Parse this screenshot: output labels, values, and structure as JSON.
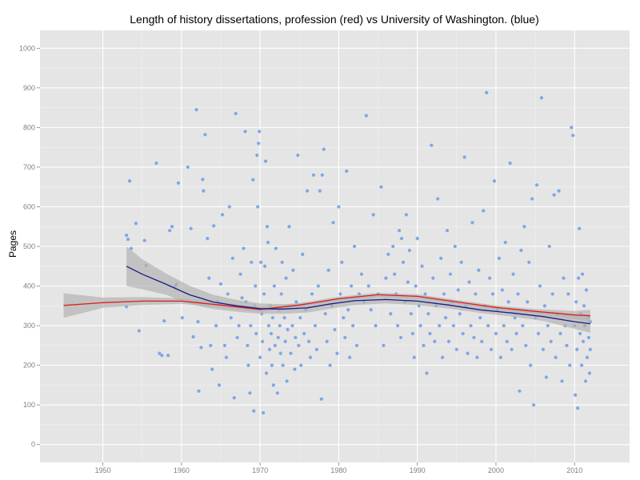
{
  "chart_data": {
    "type": "scatter",
    "title": "Length of history dissertations, profession (red) vs University of Washington. (blue)",
    "xlabel": "",
    "ylabel": "Pages",
    "xlim": [
      1942,
      2017
    ],
    "ylim": [
      -45,
      1045
    ],
    "x_ticks": [
      1950,
      1960,
      1970,
      1980,
      1990,
      2000,
      2010
    ],
    "y_ticks": [
      0,
      100,
      200,
      300,
      400,
      500,
      600,
      700,
      800,
      900,
      1000
    ],
    "grid": true,
    "legend": "none",
    "colors": {
      "panel": "#e5e5e5",
      "grid_major": "#ffffff",
      "grid_minor": "#f2f2f2",
      "points": "#7ea6e6",
      "profession_line": "#e01b1b",
      "uw_line": "#1a1a8c",
      "ribbon": "#b3b3b3"
    },
    "series": [
      {
        "x": [
          1945,
          1950,
          1955,
          1960,
          1965,
          1970,
          1975,
          1980,
          1985,
          1990,
          1995,
          2000,
          2005,
          2010,
          2012
        ],
        "y": [
          351,
          358,
          362,
          362,
          352,
          341,
          352,
          368,
          378,
          374,
          360,
          346,
          336,
          327,
          325
        ],
        "band": [
          [
            320,
            382
          ],
          [
            345,
            371
          ],
          [
            352,
            372
          ],
          [
            355,
            369
          ],
          [
            345,
            359
          ],
          [
            335,
            347
          ],
          [
            347,
            357
          ],
          [
            363,
            373
          ],
          [
            373,
            383
          ],
          [
            369,
            379
          ],
          [
            355,
            365
          ],
          [
            341,
            351
          ],
          [
            330,
            342
          ],
          [
            317,
            337
          ],
          [
            310,
            340
          ]
        ]
      },
      {
        "x": [
          1953,
          1955,
          1958,
          1961,
          1964,
          1967,
          1970,
          1973,
          1976,
          1979,
          1982,
          1986,
          1990,
          1994,
          1998,
          2002,
          2006,
          2010,
          2012
        ],
        "y": [
          450,
          430,
          405,
          378,
          360,
          350,
          343,
          342,
          345,
          355,
          363,
          366,
          362,
          352,
          340,
          332,
          323,
          310,
          305
        ],
        "band": [
          [
            400,
            500
          ],
          [
            392,
            468
          ],
          [
            378,
            432
          ],
          [
            355,
            401
          ],
          [
            342,
            378
          ],
          [
            335,
            365
          ],
          [
            330,
            356
          ],
          [
            330,
            354
          ],
          [
            333,
            357
          ],
          [
            343,
            367
          ],
          [
            352,
            374
          ],
          [
            356,
            376
          ],
          [
            352,
            372
          ],
          [
            343,
            361
          ],
          [
            332,
            348
          ],
          [
            323,
            341
          ],
          [
            312,
            334
          ],
          [
            292,
            328
          ],
          [
            282,
            328
          ]
        ]
      }
    ],
    "points": [
      [
        1953.0,
        528
      ],
      [
        1953.2,
        518
      ],
      [
        1953.4,
        665
      ],
      [
        1953.6,
        495
      ],
      [
        1953.0,
        348
      ],
      [
        1954.2,
        558
      ],
      [
        1954.6,
        287
      ],
      [
        1955.3,
        515
      ],
      [
        1955.5,
        452
      ],
      [
        1956.8,
        710
      ],
      [
        1957.2,
        230
      ],
      [
        1957.5,
        225
      ],
      [
        1957.8,
        312
      ],
      [
        1958.3,
        225
      ],
      [
        1958.5,
        540
      ],
      [
        1958.8,
        550
      ],
      [
        1959.2,
        400
      ],
      [
        1959.4,
        405
      ],
      [
        1959.6,
        660
      ],
      [
        1960.1,
        320
      ],
      [
        1960.8,
        700
      ],
      [
        1961.2,
        545
      ],
      [
        1961.5,
        272
      ],
      [
        1961.9,
        845
      ],
      [
        1962.1,
        310
      ],
      [
        1962.2,
        135
      ],
      [
        1962.5,
        245
      ],
      [
        1962.7,
        669
      ],
      [
        1962.8,
        640
      ],
      [
        1963.0,
        782
      ],
      [
        1963.3,
        520
      ],
      [
        1963.5,
        420
      ],
      [
        1963.7,
        250
      ],
      [
        1963.9,
        190
      ],
      [
        1964.1,
        552
      ],
      [
        1964.4,
        300
      ],
      [
        1964.6,
        360
      ],
      [
        1964.8,
        150
      ],
      [
        1965.0,
        405
      ],
      [
        1965.2,
        580
      ],
      [
        1965.5,
        250
      ],
      [
        1965.7,
        220
      ],
      [
        1965.9,
        380
      ],
      [
        1966.1,
        600
      ],
      [
        1966.3,
        320
      ],
      [
        1966.5,
        470
      ],
      [
        1966.7,
        118
      ],
      [
        1966.9,
        835
      ],
      [
        1967.1,
        270
      ],
      [
        1967.3,
        300
      ],
      [
        1967.5,
        430
      ],
      [
        1967.7,
        370
      ],
      [
        1967.9,
        495
      ],
      [
        1968.1,
        790
      ],
      [
        1968.2,
        360
      ],
      [
        1968.4,
        250
      ],
      [
        1968.5,
        200
      ],
      [
        1968.7,
        130
      ],
      [
        1968.8,
        300
      ],
      [
        1968.9,
        460
      ],
      [
        1969.1,
        668
      ],
      [
        1969.2,
        85
      ],
      [
        1969.3,
        350
      ],
      [
        1969.4,
        400
      ],
      [
        1969.5,
        280
      ],
      [
        1969.6,
        730
      ],
      [
        1969.7,
        600
      ],
      [
        1969.8,
        760
      ],
      [
        1969.9,
        790
      ],
      [
        1970.0,
        220
      ],
      [
        1970.1,
        460
      ],
      [
        1970.2,
        330
      ],
      [
        1970.3,
        260
      ],
      [
        1970.4,
        80
      ],
      [
        1970.5,
        380
      ],
      [
        1970.6,
        450
      ],
      [
        1970.7,
        715
      ],
      [
        1970.8,
        180
      ],
      [
        1970.9,
        550
      ],
      [
        1971.0,
        510
      ],
      [
        1971.1,
        300
      ],
      [
        1971.2,
        240
      ],
      [
        1971.3,
        350
      ],
      [
        1971.4,
        280
      ],
      [
        1971.5,
        200
      ],
      [
        1971.6,
        320
      ],
      [
        1971.7,
        150
      ],
      [
        1971.8,
        400
      ],
      [
        1971.9,
        250
      ],
      [
        1972.0,
        495
      ],
      [
        1972.2,
        130
      ],
      [
        1972.3,
        270
      ],
      [
        1972.4,
        340
      ],
      [
        1972.5,
        300
      ],
      [
        1972.6,
        230
      ],
      [
        1972.7,
        380
      ],
      [
        1972.8,
        460
      ],
      [
        1972.9,
        200
      ],
      [
        1973.1,
        320
      ],
      [
        1973.2,
        260
      ],
      [
        1973.3,
        420
      ],
      [
        1973.4,
        160
      ],
      [
        1973.5,
        290
      ],
      [
        1973.7,
        550
      ],
      [
        1973.8,
        350
      ],
      [
        1973.9,
        230
      ],
      [
        1974.1,
        300
      ],
      [
        1974.2,
        440
      ],
      [
        1974.4,
        190
      ],
      [
        1974.5,
        270
      ],
      [
        1974.6,
        360
      ],
      [
        1974.8,
        730
      ],
      [
        1974.9,
        250
      ],
      [
        1975.1,
        320
      ],
      [
        1975.2,
        200
      ],
      [
        1975.4,
        480
      ],
      [
        1975.6,
        280
      ],
      [
        1975.8,
        340
      ],
      [
        1976.0,
        640
      ],
      [
        1976.2,
        260
      ],
      [
        1976.4,
        220
      ],
      [
        1976.6,
        380
      ],
      [
        1976.8,
        680
      ],
      [
        1977.0,
        300
      ],
      [
        1977.2,
        240
      ],
      [
        1977.4,
        400
      ],
      [
        1977.6,
        640
      ],
      [
        1977.8,
        115
      ],
      [
        1977.9,
        680
      ],
      [
        1978.1,
        745
      ],
      [
        1978.3,
        330
      ],
      [
        1978.5,
        260
      ],
      [
        1978.7,
        440
      ],
      [
        1978.9,
        200
      ],
      [
        1979.1,
        350
      ],
      [
        1979.3,
        560
      ],
      [
        1979.5,
        290
      ],
      [
        1979.8,
        230
      ],
      [
        1980.0,
        600
      ],
      [
        1980.2,
        380
      ],
      [
        1980.4,
        460
      ],
      [
        1980.6,
        320
      ],
      [
        1980.8,
        270
      ],
      [
        1981.0,
        690
      ],
      [
        1981.2,
        340
      ],
      [
        1981.4,
        220
      ],
      [
        1981.6,
        400
      ],
      [
        1981.8,
        300
      ],
      [
        1982.0,
        500
      ],
      [
        1982.3,
        250
      ],
      [
        1982.6,
        380
      ],
      [
        1982.9,
        430
      ],
      [
        1983.2,
        360
      ],
      [
        1983.5,
        830
      ],
      [
        1983.8,
        400
      ],
      [
        1984.1,
        340
      ],
      [
        1984.4,
        580
      ],
      [
        1984.7,
        300
      ],
      [
        1985.0,
        380
      ],
      [
        1985.4,
        650
      ],
      [
        1985.7,
        250
      ],
      [
        1986.0,
        420
      ],
      [
        1986.3,
        480
      ],
      [
        1986.6,
        330
      ],
      [
        1986.9,
        500
      ],
      [
        1987.1,
        430
      ],
      [
        1987.3,
        380
      ],
      [
        1987.5,
        300
      ],
      [
        1987.7,
        540
      ],
      [
        1987.9,
        270
      ],
      [
        1988.0,
        520
      ],
      [
        1988.2,
        460
      ],
      [
        1988.4,
        360
      ],
      [
        1988.6,
        580
      ],
      [
        1988.8,
        410
      ],
      [
        1989.0,
        490
      ],
      [
        1989.2,
        330
      ],
      [
        1989.4,
        280
      ],
      [
        1989.6,
        220
      ],
      [
        1989.8,
        400
      ],
      [
        1990.0,
        520
      ],
      [
        1990.2,
        350
      ],
      [
        1990.4,
        300
      ],
      [
        1990.6,
        450
      ],
      [
        1990.8,
        250
      ],
      [
        1991.0,
        380
      ],
      [
        1991.2,
        180
      ],
      [
        1991.4,
        330
      ],
      [
        1991.6,
        280
      ],
      [
        1991.8,
        755
      ],
      [
        1992.0,
        420
      ],
      [
        1992.2,
        260
      ],
      [
        1992.4,
        350
      ],
      [
        1992.6,
        620
      ],
      [
        1992.8,
        300
      ],
      [
        1993.0,
        470
      ],
      [
        1993.2,
        220
      ],
      [
        1993.4,
        380
      ],
      [
        1993.6,
        320
      ],
      [
        1993.8,
        540
      ],
      [
        1994.0,
        260
      ],
      [
        1994.2,
        430
      ],
      [
        1994.4,
        360
      ],
      [
        1994.6,
        300
      ],
      [
        1994.8,
        500
      ],
      [
        1995.0,
        240
      ],
      [
        1995.2,
        390
      ],
      [
        1995.4,
        330
      ],
      [
        1995.6,
        460
      ],
      [
        1995.8,
        280
      ],
      [
        1996.0,
        725
      ],
      [
        1996.2,
        350
      ],
      [
        1996.4,
        230
      ],
      [
        1996.6,
        410
      ],
      [
        1996.8,
        300
      ],
      [
        1997.0,
        560
      ],
      [
        1997.2,
        270
      ],
      [
        1997.4,
        380
      ],
      [
        1997.6,
        220
      ],
      [
        1997.8,
        440
      ],
      [
        1998.0,
        320
      ],
      [
        1998.2,
        260
      ],
      [
        1998.4,
        590
      ],
      [
        1998.6,
        350
      ],
      [
        1998.8,
        888
      ],
      [
        1999.0,
        300
      ],
      [
        1999.2,
        420
      ],
      [
        1999.4,
        240
      ],
      [
        1999.6,
        380
      ],
      [
        1999.8,
        665
      ],
      [
        2000.0,
        280
      ],
      [
        2000.2,
        340
      ],
      [
        2000.4,
        470
      ],
      [
        2000.6,
        220
      ],
      [
        2000.8,
        390
      ],
      [
        2001.0,
        300
      ],
      [
        2001.2,
        510
      ],
      [
        2001.4,
        260
      ],
      [
        2001.6,
        360
      ],
      [
        2001.8,
        710
      ],
      [
        2002.0,
        240
      ],
      [
        2002.2,
        430
      ],
      [
        2002.4,
        320
      ],
      [
        2002.6,
        280
      ],
      [
        2002.8,
        380
      ],
      [
        2003.0,
        135
      ],
      [
        2003.2,
        490
      ],
      [
        2003.4,
        300
      ],
      [
        2003.6,
        550
      ],
      [
        2003.8,
        250
      ],
      [
        2004.0,
        360
      ],
      [
        2004.2,
        460
      ],
      [
        2004.4,
        200
      ],
      [
        2004.6,
        620
      ],
      [
        2004.8,
        100
      ],
      [
        2005.0,
        320
      ],
      [
        2005.2,
        655
      ],
      [
        2005.4,
        280
      ],
      [
        2005.6,
        400
      ],
      [
        2005.8,
        875
      ],
      [
        2006.0,
        240
      ],
      [
        2006.2,
        350
      ],
      [
        2006.4,
        170
      ],
      [
        2006.6,
        300
      ],
      [
        2006.8,
        500
      ],
      [
        2007.0,
        260
      ],
      [
        2007.2,
        380
      ],
      [
        2007.4,
        630
      ],
      [
        2007.6,
        220
      ],
      [
        2007.8,
        330
      ],
      [
        2008.0,
        640
      ],
      [
        2008.2,
        280
      ],
      [
        2008.4,
        160
      ],
      [
        2008.6,
        420
      ],
      [
        2008.8,
        300
      ],
      [
        2009.0,
        250
      ],
      [
        2009.2,
        380
      ],
      [
        2009.4,
        200
      ],
      [
        2009.6,
        800
      ],
      [
        2009.8,
        780
      ],
      [
        2010.0,
        300
      ],
      [
        2010.1,
        125
      ],
      [
        2010.2,
        360
      ],
      [
        2010.3,
        240
      ],
      [
        2010.4,
        92
      ],
      [
        2010.5,
        420
      ],
      [
        2010.6,
        545
      ],
      [
        2010.7,
        280
      ],
      [
        2010.8,
        330
      ],
      [
        2010.9,
        200
      ],
      [
        2011.0,
        430
      ],
      [
        2011.1,
        260
      ],
      [
        2011.2,
        350
      ],
      [
        2011.3,
        300
      ],
      [
        2011.4,
        160
      ],
      [
        2011.5,
        390
      ],
      [
        2011.6,
        220
      ],
      [
        2011.7,
        320
      ],
      [
        2011.8,
        270
      ],
      [
        2011.9,
        180
      ],
      [
        2012.0,
        310
      ],
      [
        2012.0,
        240
      ]
    ]
  }
}
